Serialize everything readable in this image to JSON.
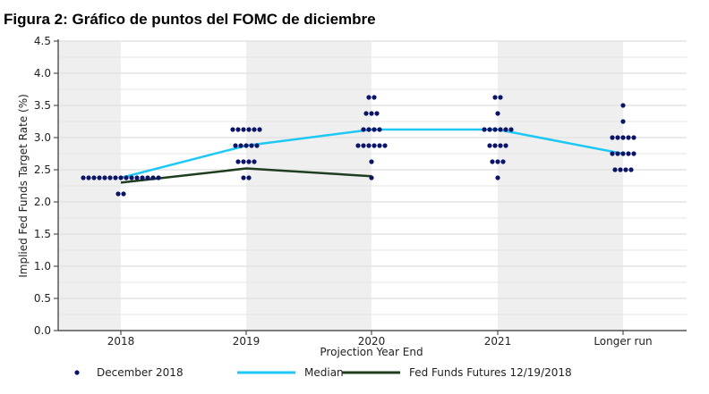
{
  "chart_data": {
    "type": "scatter",
    "title": "Figura 2: Gráfico de puntos del FOMC de diciembre",
    "xlabel": "Projection Year End",
    "ylabel": "Implied Fed Funds Target Rate (%)",
    "ylim": [
      0,
      4.5
    ],
    "yticks": [
      "0.0",
      "0.5",
      "1.0",
      "1.5",
      "2.0",
      "2.5",
      "3.0",
      "3.5",
      "4.0",
      "4.5"
    ],
    "categories": [
      "2018",
      "2019",
      "2020",
      "2021",
      "Longer run"
    ],
    "dots": [
      [
        {
          "v": 2.375,
          "n": 15
        },
        {
          "v": 2.125,
          "n": 2
        }
      ],
      [
        {
          "v": 3.125,
          "n": 6
        },
        {
          "v": 2.875,
          "n": 5
        },
        {
          "v": 2.625,
          "n": 4
        },
        {
          "v": 2.375,
          "n": 2
        }
      ],
      [
        {
          "v": 3.625,
          "n": 2
        },
        {
          "v": 3.375,
          "n": 3
        },
        {
          "v": 3.125,
          "n": 4
        },
        {
          "v": 2.875,
          "n": 6
        },
        {
          "v": 2.625,
          "n": 1
        },
        {
          "v": 2.375,
          "n": 1
        }
      ],
      [
        {
          "v": 3.625,
          "n": 2
        },
        {
          "v": 3.375,
          "n": 1
        },
        {
          "v": 3.125,
          "n": 6
        },
        {
          "v": 2.875,
          "n": 4
        },
        {
          "v": 2.625,
          "n": 3
        },
        {
          "v": 2.375,
          "n": 1
        }
      ],
      [
        {
          "v": 3.5,
          "n": 1
        },
        {
          "v": 3.25,
          "n": 1
        },
        {
          "v": 3.0,
          "n": 5
        },
        {
          "v": 2.75,
          "n": 5
        },
        {
          "v": 2.5,
          "n": 4
        }
      ]
    ],
    "series": [
      {
        "name": "Median",
        "color": "#1ec8f5",
        "values": [
          2.375,
          2.875,
          3.125,
          3.125,
          2.75
        ]
      },
      {
        "name": "Fed Funds Futures 12/19/2018",
        "color": "#1f3d1f",
        "values": [
          2.3,
          2.52,
          2.4,
          null,
          null
        ]
      }
    ],
    "dot_series": {
      "name": "December 2018",
      "color": "#0b1466"
    },
    "legend": "bottom"
  }
}
